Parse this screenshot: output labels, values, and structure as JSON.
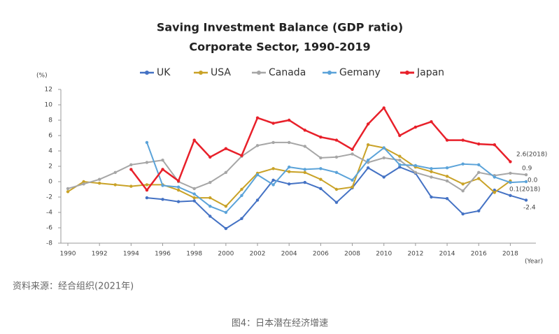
{
  "chart_data": {
    "type": "line",
    "title": "Saving Investment Balance (GDP ratio)",
    "subtitle": "Corporate Sector, 1990-2019",
    "y_label": "(%)",
    "x_label": "(Year)",
    "x": [
      1990,
      1991,
      1992,
      1993,
      1994,
      1995,
      1996,
      1997,
      1998,
      1999,
      2000,
      2001,
      2002,
      2003,
      2004,
      2005,
      2006,
      2007,
      2008,
      2009,
      2010,
      2011,
      2012,
      2013,
      2014,
      2015,
      2016,
      2017,
      2018,
      2019
    ],
    "xlim": [
      1990,
      2019
    ],
    "xticks": [
      1990,
      1992,
      1994,
      1996,
      1998,
      2000,
      2002,
      2004,
      2006,
      2008,
      2010,
      2012,
      2014,
      2016,
      2018
    ],
    "ylim": [
      -8,
      12
    ],
    "yticks": [
      -8,
      -6,
      -4,
      -2,
      0,
      2,
      4,
      6,
      8,
      10,
      12
    ],
    "grid": false,
    "series": [
      {
        "name": "UK",
        "color": "#4472c4",
        "values": [
          null,
          null,
          null,
          null,
          null,
          -2.1,
          -2.3,
          -2.6,
          -2.5,
          -4.5,
          -6.1,
          -4.8,
          -2.4,
          0.2,
          -0.3,
          -0.1,
          -0.9,
          -2.7,
          -0.8,
          1.8,
          0.6,
          1.9,
          1.1,
          -2.0,
          -2.2,
          -4.2,
          -3.8,
          -1.1,
          -1.8,
          -2.4
        ]
      },
      {
        "name": "USA",
        "color": "#c9a227",
        "values": [
          -1.3,
          0.0,
          -0.2,
          -0.4,
          -0.6,
          -0.4,
          -0.4,
          -1.1,
          -2.1,
          -2.1,
          -3.2,
          -1.0,
          1.1,
          1.7,
          1.3,
          1.2,
          0.3,
          -1.0,
          -0.7,
          4.8,
          4.4,
          3.3,
          1.9,
          1.3,
          0.7,
          -0.3,
          0.4,
          -1.4,
          0.1,
          null
        ]
      },
      {
        "name": "Canada",
        "color": "#a6a6a6",
        "values": [
          -0.9,
          -0.3,
          0.3,
          1.2,
          2.2,
          2.5,
          2.8,
          0.0,
          -0.9,
          -0.1,
          1.2,
          3.3,
          4.7,
          5.1,
          5.1,
          4.6,
          3.1,
          3.2,
          3.6,
          2.5,
          3.1,
          2.8,
          1.2,
          0.6,
          0.1,
          -1.2,
          1.2,
          0.8,
          1.1,
          0.9
        ]
      },
      {
        "name": "Gemany",
        "color": "#5ba3d9",
        "values": [
          null,
          null,
          null,
          null,
          null,
          5.1,
          -0.5,
          -0.7,
          -1.6,
          -3.2,
          -4.0,
          -1.8,
          0.9,
          -0.4,
          1.9,
          1.6,
          1.7,
          1.2,
          0.2,
          2.8,
          4.4,
          2.2,
          2.1,
          1.7,
          1.8,
          2.3,
          2.2,
          0.6,
          -0.1,
          0.0
        ]
      },
      {
        "name": "Japan",
        "color": "#e8202a",
        "values": [
          null,
          null,
          null,
          null,
          1.6,
          -1.1,
          1.6,
          0.1,
          5.4,
          3.2,
          4.3,
          3.4,
          8.3,
          7.6,
          8.0,
          6.7,
          5.8,
          5.4,
          4.2,
          7.5,
          9.6,
          6.0,
          7.1,
          7.8,
          5.4,
          5.4,
          4.9,
          4.8,
          2.6,
          null
        ]
      }
    ],
    "annotations": [
      "2.6(2018)",
      "0.9",
      "0.0",
      "0.1(2018)",
      "-2.4"
    ]
  },
  "source": "资料来源：经合组织(2021年)",
  "caption": "图4：日本潜在经济增速"
}
